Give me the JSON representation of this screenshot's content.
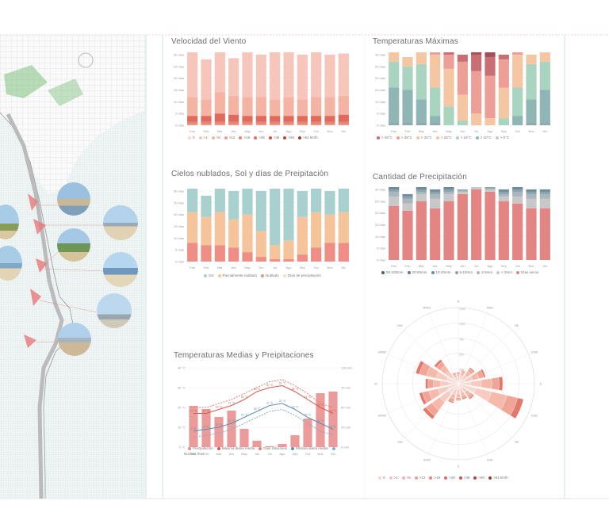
{
  "colors": {
    "v0": "#f6d5cf",
    "v1": "#f7c6bb",
    "v2": "#f4b3a3",
    "v3": "#ef9c8b",
    "v4": "#e88574",
    "v5": "#df6b5e",
    "v6": "#cf5348",
    "v7": "#bb453f",
    "sun": "#a8d0cf",
    "partly": "#f5c49a",
    "cloudy": "#ee8e84",
    "rain": "#f3dcd6",
    "temp_hot": "#e4817a",
    "temp_warm": "#f2c2a6",
    "temp_mild": "#a7d2bf",
    "precip": "#e88a87",
    "grey": "#b8b8b8",
    "blue": "#5a8fb0"
  },
  "map": {
    "photos": [
      "harbor-photo",
      "palm-photo",
      "beach-photo",
      "promenade-photo",
      "palm-trees-photo",
      "beach-sea-photo",
      "lighthouse-photo",
      "harbor-wall-photo"
    ]
  },
  "charts": {
    "wind": {
      "title": "Velocidad del Viento",
      "chart_data": {
        "type": "bar",
        "categories": [
          "Ene",
          "Feb",
          "Mar",
          "Abr",
          "May",
          "Jun",
          "Jul",
          "Ago",
          "Sep",
          "Oct",
          "Nov",
          "Dic"
        ],
        "yticks": [
          "0 días",
          "5 días",
          "10 días",
          "15 días",
          "20 días",
          "25 días",
          "30 días"
        ],
        "ylim": [
          0,
          31
        ],
        "series": [
          {
            "name": "0",
            "values": [
              0.5,
              0.5,
              0.5,
              0.5,
              0.5,
              0.5,
              0.5,
              0.5,
              0.5,
              0.5,
              0.5,
              0.5
            ]
          },
          {
            "name": ">1",
            "values": [
              1,
              1,
              1,
              1,
              1,
              1,
              1,
              1,
              1,
              1,
              1,
              1
            ]
          },
          {
            "name": ">5",
            "values": [
              2.5,
              2.5,
              3.5,
              3,
              2.5,
              2.5,
              2.5,
              2.5,
              2.5,
              2.5,
              2.5,
              3
            ]
          },
          {
            "name": ">12",
            "values": [
              8,
              7,
              9,
              8,
              8,
              8,
              7,
              8,
              7,
              8,
              8,
              8
            ]
          },
          {
            "name": ">19",
            "values": [
              19,
              17,
              17,
              16,
              19,
              18,
              20,
              19,
              19,
              19,
              18,
              18
            ]
          }
        ],
        "legend": [
          "0",
          ">1",
          ">5",
          ">12",
          ">19",
          ">28",
          ">38",
          ">50",
          ">61 km/h"
        ]
      }
    },
    "tmax": {
      "title": "Temperaturas Máximas",
      "chart_data": {
        "type": "bar",
        "categories": [
          "Ene",
          "Feb",
          "Mar",
          "Abr",
          "May",
          "Jun",
          "Jul",
          "Ago",
          "Sep",
          "Oct",
          "Nov",
          "Dic"
        ],
        "yticks": [
          "0 días",
          "5 días",
          "10 días",
          "15 días",
          "20 días",
          "25 días",
          "30 días"
        ],
        "ylim": [
          0,
          31
        ],
        "series": [
          {
            "name": "< 5°C",
            "values": [
              0,
              0,
              0,
              0,
              0,
              0,
              0,
              0,
              0,
              0,
              0,
              0
            ]
          },
          {
            "name": "< 10°C",
            "values": [
              1,
              1,
              1,
              1,
              0,
              0,
              0,
              0,
              0,
              0,
              1,
              1
            ]
          },
          {
            "name": "< 15°C",
            "values": [
              15,
              14,
              10,
              3,
              0,
              0,
              0,
              0,
              0,
              4,
              10,
              14
            ]
          },
          {
            "name": "< 20°C",
            "values": [
              11,
              10,
              15,
              12,
              8,
              2,
              0,
              0,
              3,
              12,
              15,
              12
            ]
          },
          {
            "name": "< 25°C",
            "values": [
              4,
              4,
              5,
              14,
              16,
              11,
              5,
              3,
              13,
              14,
              4,
              4
            ]
          },
          {
            "name": "< 30°C",
            "values": [
              0,
              0,
              0,
              1,
              6,
              14,
              18,
              18,
              12,
              1,
              0,
              0
            ]
          },
          {
            "name": "< 35°C",
            "values": [
              0,
              0,
              0,
              0,
              1,
              3,
              7,
              8,
              2,
              0,
              0,
              0
            ]
          },
          {
            "name": "< 40°C",
            "values": [
              0,
              0,
              0,
              0,
              0,
              0,
              1,
              2,
              0,
              0,
              0,
              0
            ]
          }
        ],
        "legend": [
          "> 45°C",
          "> 38°C",
          "> 25°C",
          "> 20°C",
          "> 15°C",
          "> 10°C",
          "> 5°C"
        ]
      }
    },
    "sky": {
      "title": "Cielos nublados, Sol y días de Preipitación",
      "chart_data": {
        "type": "bar",
        "categories": [
          "Ene",
          "Feb",
          "Mar",
          "Abr",
          "May",
          "Jun",
          "Jul",
          "Ago",
          "Sep",
          "Oct",
          "Nov",
          "Dic"
        ],
        "yticks": [
          "0 días",
          "5 días",
          "10 días",
          "15 días",
          "20 días",
          "25 días",
          "30 días"
        ],
        "ylim": [
          0,
          31
        ],
        "series": [
          {
            "name": "Nublado",
            "values": [
              8,
              7,
              7,
              6,
              4,
              2,
              1,
              1,
              3,
              6,
              8,
              8
            ]
          },
          {
            "name": "Parcialmente nublado",
            "values": [
              13,
              12,
              14,
              12,
              16,
              11,
              6,
              8,
              16,
              15,
              12,
              13
            ]
          },
          {
            "name": "Sol",
            "values": [
              10,
              9,
              10,
              12,
              11,
              17,
              24,
              22,
              11,
              10,
              10,
              10
            ]
          }
        ],
        "legend": [
          "Sol",
          "Parcialmente nublado",
          "Nublado",
          "Días de precipitación"
        ]
      }
    },
    "precip": {
      "title": "Cantidad de Precipitación",
      "chart_data": {
        "type": "bar",
        "categories": [
          "Ene",
          "Feb",
          "Mar",
          "Abr",
          "May",
          "Jun",
          "Jul",
          "Ago",
          "Sep",
          "Oct",
          "Nov",
          "Dic"
        ],
        "yticks": [
          "0 días",
          "5 días",
          "10 días",
          "15 días",
          "20 días",
          "25 días",
          "30 días"
        ],
        "ylim": [
          0,
          31
        ],
        "series": [
          {
            "name": "Días secos",
            "values": [
              23,
              21,
              25,
              22,
              25,
              28,
              30,
              29,
              25,
              24,
              22,
              22
            ]
          },
          {
            "name": "< 2mm",
            "values": [
              4,
              3,
              3,
              4,
              3,
              1,
              1,
              1,
              2,
              3,
              4,
              4
            ]
          },
          {
            "name": "2-5mm",
            "values": [
              2,
              2,
              1,
              2,
              1,
              0.5,
              0,
              0.5,
              1,
              2,
              2,
              2
            ]
          },
          {
            "name": "5-10mm",
            "values": [
              1,
              1,
              1,
              1,
              1,
              0.5,
              0,
              0.5,
              1,
              1,
              1,
              1
            ]
          },
          {
            "name": "10-20mm",
            "values": [
              1,
              1,
              1,
              1,
              1,
              0,
              0,
              0,
              1,
              1,
              1,
              1
            ]
          }
        ],
        "legend": [
          "50-100mm",
          "20-50mm",
          "10-20mm",
          "5-10mm",
          "2-5mm",
          "< 2mm",
          "Días secos"
        ]
      }
    },
    "temp_precip": {
      "title": "Temperaturas Medias y Preipitaciones",
      "chart_data": {
        "type": "bar+line",
        "categories": [
          "Ene",
          "Feb",
          "Mar",
          "Abr",
          "May",
          "Jun",
          "Jul",
          "Ago",
          "Sep",
          "Oct",
          "Nov",
          "Dic"
        ],
        "yticks_left": [
          "0 °C",
          "10 °C",
          "20 °C",
          "30 °C",
          "40 °C"
        ],
        "yticks_right": [
          "0 mm",
          "25 mm",
          "50 mm",
          "75 mm",
          "100 mm"
        ],
        "precip_mm": [
          52,
          48,
          38,
          46,
          23,
          8,
          1,
          4,
          15,
          36,
          68,
          70
        ],
        "max_c": [
          17,
          17,
          19,
          21,
          24,
          28,
          30,
          31,
          28,
          24,
          20,
          17
        ],
        "min_c": [
          8,
          9,
          10,
          12,
          15,
          18,
          21,
          22,
          19,
          15,
          12,
          9
        ],
        "max_labels": [
          "17 °C",
          "17 °C",
          "19 °C",
          "21 °C",
          "24 °C",
          "28 °C",
          "30 °C",
          "31 °C",
          "28 °C",
          "24 °C",
          "20 °C",
          "17 °C"
        ],
        "min_labels": [
          "8 °C",
          "9 °C",
          "10 °C",
          "12 °C",
          "15 °C",
          "18 °C",
          "21 °C",
          "22 °C",
          "19 °C",
          "15 °C",
          "12 °C",
          "9 °C"
        ],
        "hot_days": [
          20,
          20,
          22,
          24,
          27,
          30,
          33,
          34,
          31,
          27,
          22,
          20
        ],
        "cold_nights": [
          5,
          6,
          7,
          9,
          12,
          15,
          18,
          19,
          16,
          12,
          8,
          6
        ],
        "legend": [
          "Precipitación",
          "Máxima diaria media",
          "Días calurosos",
          "Mínima diaria media",
          "Noches frías"
        ]
      }
    },
    "windrose": {
      "chart_data": {
        "type": "windrose",
        "directions": [
          "N",
          "NNE",
          "NE",
          "ENE",
          "E",
          "ESE",
          "SE",
          "SSE",
          "S",
          "SSW",
          "SW",
          "WSW",
          "W",
          "WNW",
          "NW",
          "NNW"
        ],
        "rings": [
          "250",
          "500",
          "750",
          "1000",
          "1250"
        ],
        "rmax": 1250,
        "hours": [
          [
            60,
            50,
            40,
            30,
            10
          ],
          [
            80,
            60,
            50,
            30,
            10
          ],
          [
            90,
            90,
            80,
            50,
            20
          ],
          [
            120,
            120,
            110,
            80,
            30
          ],
          [
            200,
            180,
            170,
            120,
            60
          ],
          [
            300,
            260,
            260,
            180,
            100
          ],
          [
            100,
            80,
            70,
            50,
            20
          ],
          [
            80,
            70,
            60,
            40,
            20
          ],
          [
            90,
            80,
            60,
            40,
            10
          ],
          [
            100,
            90,
            70,
            50,
            20
          ],
          [
            200,
            180,
            160,
            120,
            60
          ],
          [
            180,
            170,
            150,
            110,
            50
          ],
          [
            150,
            140,
            120,
            90,
            40
          ],
          [
            200,
            180,
            160,
            120,
            60
          ],
          [
            140,
            120,
            110,
            80,
            40
          ],
          [
            60,
            50,
            40,
            30,
            10
          ]
        ],
        "legend": [
          "0",
          ">1",
          ">5",
          ">12",
          ">19",
          ">28",
          ">38",
          ">50",
          ">61 km/h"
        ]
      }
    }
  }
}
